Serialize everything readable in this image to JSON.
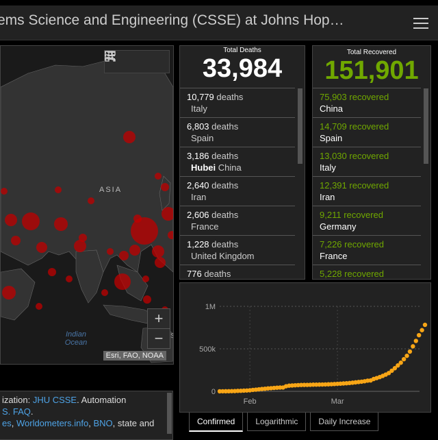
{
  "header": {
    "title": "ems Science and Engineering (CSSE) at Johns Hop…"
  },
  "map": {
    "labels": {
      "asia": "ASIA",
      "ocean": "Indian Ocean",
      "edge": "S"
    },
    "attribution": "Esri, FAO, NOAA",
    "zoom_in": "+",
    "zoom_out": "−"
  },
  "deaths": {
    "label": "Total Deaths",
    "total": "33,984",
    "rows": [
      {
        "count": "10,779",
        "suffix": "deaths",
        "place": "Italy",
        "bold": ""
      },
      {
        "count": "6,803",
        "suffix": "deaths",
        "place": "Spain",
        "bold": ""
      },
      {
        "count": "3,186",
        "suffix": "deaths",
        "place": "China",
        "bold": "Hubei"
      },
      {
        "count": "2,640",
        "suffix": "deaths",
        "place": "Iran",
        "bold": ""
      },
      {
        "count": "2,606",
        "suffix": "deaths",
        "place": "France",
        "bold": ""
      },
      {
        "count": "1,228",
        "suffix": "deaths",
        "place": "United Kingdom",
        "bold": ""
      },
      {
        "count": "776",
        "suffix": "deaths",
        "place": "",
        "bold": ""
      }
    ]
  },
  "recovered": {
    "label": "Total Recovered",
    "total": "151,901",
    "rows": [
      {
        "count": "75,903",
        "suffix": "recovered",
        "place": "China"
      },
      {
        "count": "14,709",
        "suffix": "recovered",
        "place": "Spain"
      },
      {
        "count": "13,030",
        "suffix": "recovered",
        "place": "Italy"
      },
      {
        "count": "12,391",
        "suffix": "recovered",
        "place": "Iran"
      },
      {
        "count": "9,211",
        "suffix": "recovered",
        "place": "Germany"
      },
      {
        "count": "7,226",
        "suffix": "recovered",
        "place": "France"
      },
      {
        "count": "5,228",
        "suffix": "recovered",
        "place": ""
      }
    ]
  },
  "chart_data": {
    "type": "scatter",
    "title": "",
    "xlabel": "",
    "ylabel": "",
    "y_ticks": [
      "1M",
      "500k",
      "0"
    ],
    "x_ticks": [
      "Feb",
      "Mar"
    ],
    "ylim": [
      0,
      1000000
    ],
    "series": [
      {
        "name": "Confirmed",
        "color": "#f7a516",
        "x": [
          0,
          1,
          2,
          3,
          4,
          5,
          6,
          7,
          8,
          9,
          10,
          11,
          12,
          13,
          14,
          15,
          16,
          17,
          18,
          19,
          20,
          21,
          22,
          23,
          24,
          25,
          26,
          27,
          28,
          29,
          30,
          31,
          32,
          33,
          34,
          35,
          36,
          37,
          38,
          39,
          40,
          41,
          42,
          43,
          44,
          45,
          46,
          47,
          48,
          49,
          50,
          51,
          52,
          53,
          54,
          55,
          56,
          57,
          58,
          59,
          60,
          61,
          62,
          63,
          64,
          65,
          66,
          67,
          68
        ],
        "values": [
          555,
          654,
          941,
          1434,
          2118,
          2927,
          5578,
          6166,
          8234,
          9927,
          12038,
          16787,
          19881,
          23892,
          27635,
          30817,
          34391,
          37120,
          40150,
          42762,
          44802,
          45221,
          60368,
          66885,
          69030,
          71224,
          73258,
          75136,
          75639,
          76197,
          76819,
          78572,
          78958,
          79561,
          80406,
          81388,
          82746,
          84112,
          86011,
          88369,
          90306,
          92840,
          95120,
          97886,
          101801,
          105847,
          109821,
          113590,
          118620,
          125875,
          128343,
          145193,
          156099,
          167447,
          181546,
          197168,
          214915,
          242713,
          272167,
          304528,
          336953,
          378235,
          418045,
          467653,
          529591,
          593291,
          660706,
          720117,
          782365
        ]
      }
    ]
  },
  "tabs": [
    "Confirmed",
    "Logarithmic",
    "Daily Increase"
  ],
  "info": {
    "line1_pre": "ization: ",
    "line1_link": "JHU CSSE",
    "line1_post": ". Automation",
    "line2_link": "S. FAQ",
    "line2_post": ".",
    "line3_link1": "es",
    "line3_sep1": ", ",
    "line3_link2": "Worldometers.info",
    "line3_sep2": ", ",
    "line3_link3": "BNO",
    "line3_post": ", state and"
  },
  "colors": {
    "accent_green": "#70a800",
    "bubble_red": "#c00000",
    "line_orange": "#f7a516",
    "link_blue": "#4ea3e6"
  }
}
